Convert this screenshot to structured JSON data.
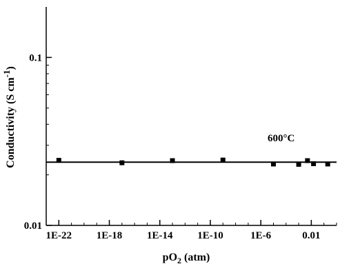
{
  "chart_data": {
    "type": "scatter",
    "title": "",
    "xlabel": {
      "base": "pO",
      "sub": "2",
      "tail": " (atm)"
    },
    "ylabel": {
      "base": "Conductivity (S cm",
      "sup": "-1",
      "tail": ")"
    },
    "x_scale": "log",
    "y_scale": "log",
    "xlim": [
      1e-23,
      1
    ],
    "ylim": [
      0.01,
      0.2
    ],
    "x_ticks": [
      {
        "value": 1e-22,
        "label": "1E-22"
      },
      {
        "value": 1e-18,
        "label": "1E-18"
      },
      {
        "value": 1e-14,
        "label": "1E-14"
      },
      {
        "value": 1e-10,
        "label": "1E-10"
      },
      {
        "value": 1e-06,
        "label": "1E-6"
      },
      {
        "value": 0.01,
        "label": "0.01"
      }
    ],
    "y_ticks": [
      {
        "value": 0.01,
        "label": "0.01"
      },
      {
        "value": 0.1,
        "label": "0.1"
      }
    ],
    "annotation": "600°C",
    "grid": false,
    "legend": "none",
    "series": [
      {
        "x": [
          1e-22,
          1e-17,
          1e-13,
          1e-09,
          1e-05,
          0.001,
          0.005,
          0.015,
          0.2
        ],
        "y": [
          0.0244,
          0.0236,
          0.0243,
          0.0245,
          0.0232,
          0.0231,
          0.0243,
          0.0233,
          0.0232
        ]
      }
    ],
    "fit_line": {
      "y": 0.0238
    }
  }
}
